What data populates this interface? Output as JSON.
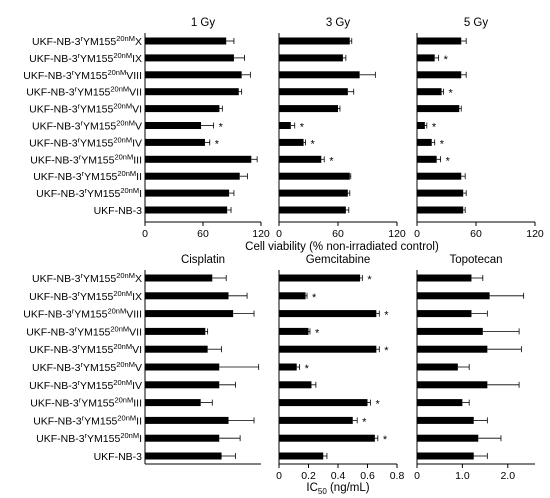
{
  "figure": {
    "top_axis_title": "Cell viability (% non-irradiated control)",
    "bottom_axis_title": "IC",
    "bottom_axis_title_sub": "50",
    "bottom_axis_title_unit": " (ng/mL)",
    "colors": {
      "bar": "#000000",
      "axis": "#000000",
      "background": "#ffffff"
    }
  },
  "row_labels": [
    {
      "base": "UKF-NB-3",
      "sup": "r",
      "mid": "YM155",
      "sup2": "20nM",
      "suffix": "X"
    },
    {
      "base": "UKF-NB-3",
      "sup": "r",
      "mid": "YM155",
      "sup2": "20nM",
      "suffix": "IX"
    },
    {
      "base": "UKF-NB-3",
      "sup": "r",
      "mid": "YM155",
      "sup2": "20nM",
      "suffix": "VIII"
    },
    {
      "base": "UKF-NB-3",
      "sup": "r",
      "mid": "YM155",
      "sup2": "20nM",
      "suffix": "VII"
    },
    {
      "base": "UKF-NB-3",
      "sup": "r",
      "mid": "YM155",
      "sup2": "20nM",
      "suffix": "VI"
    },
    {
      "base": "UKF-NB-3",
      "sup": "r",
      "mid": "YM155",
      "sup2": "20nM",
      "suffix": "V"
    },
    {
      "base": "UKF-NB-3",
      "sup": "r",
      "mid": "YM155",
      "sup2": "20nM",
      "suffix": "IV"
    },
    {
      "base": "UKF-NB-3",
      "sup": "r",
      "mid": "YM155",
      "sup2": "20nM",
      "suffix": "III"
    },
    {
      "base": "UKF-NB-3",
      "sup": "r",
      "mid": "YM155",
      "sup2": "20nM",
      "suffix": "II"
    },
    {
      "base": "UKF-NB-3",
      "sup": "r",
      "mid": "YM155",
      "sup2": "20nM",
      "suffix": "I"
    },
    {
      "base": "UKF-NB-3",
      "sup": "",
      "mid": "",
      "sup2": "",
      "suffix": ""
    }
  ],
  "chart_data": [
    {
      "type": "bar",
      "orientation": "horizontal",
      "title": "1 Gy",
      "xlim": [
        0,
        120
      ],
      "xticks": [
        "0",
        "60",
        "120"
      ],
      "values": [
        84,
        92,
        100,
        97,
        77,
        58,
        62,
        110,
        98,
        87,
        85
      ],
      "errors": [
        8,
        11,
        9,
        3,
        3,
        13,
        5,
        6,
        8,
        5,
        4
      ],
      "significant": [
        false,
        false,
        false,
        false,
        false,
        true,
        true,
        false,
        false,
        false,
        false
      ]
    },
    {
      "type": "bar",
      "orientation": "horizontal",
      "title": "3 Gy",
      "xlim": [
        0,
        120
      ],
      "xticks": [
        "0",
        "60",
        "120"
      ],
      "values": [
        72,
        65,
        82,
        70,
        60,
        12,
        25,
        43,
        72,
        70,
        68
      ],
      "errors": [
        2,
        3,
        16,
        6,
        2,
        4,
        2,
        3,
        1,
        2,
        3
      ],
      "significant": [
        false,
        false,
        false,
        false,
        false,
        true,
        true,
        true,
        false,
        false,
        false
      ]
    },
    {
      "type": "bar",
      "orientation": "horizontal",
      "title": "5 Gy",
      "xlim": [
        0,
        120
      ],
      "xticks": [
        "0",
        "60",
        "120"
      ],
      "values": [
        45,
        18,
        45,
        25,
        43,
        8,
        15,
        20,
        45,
        47,
        47
      ],
      "errors": [
        5,
        4,
        5,
        2,
        2,
        2,
        3,
        4,
        4,
        3,
        2
      ],
      "significant": [
        false,
        true,
        false,
        true,
        false,
        true,
        true,
        true,
        false,
        false,
        false
      ]
    },
    {
      "type": "bar",
      "orientation": "horizontal",
      "title": "Cisplatin",
      "xlim": [
        0,
        250
      ],
      "xticks": [],
      "values": [
        145,
        180,
        190,
        130,
        135,
        160,
        160,
        120,
        180,
        160,
        165
      ],
      "errors": [
        30,
        40,
        45,
        5,
        30,
        85,
        35,
        25,
        55,
        45,
        30
      ],
      "significant": [
        false,
        false,
        false,
        false,
        false,
        false,
        false,
        false,
        false,
        false,
        false
      ]
    },
    {
      "type": "bar",
      "orientation": "horizontal",
      "title": "Gemcitabine",
      "xlim": [
        0,
        0.8
      ],
      "xticks": [
        "0",
        "0.2",
        "0.4",
        "0.6",
        "0.8"
      ],
      "values": [
        0.55,
        0.18,
        0.66,
        0.2,
        0.66,
        0.12,
        0.22,
        0.6,
        0.5,
        0.65,
        0.3
      ],
      "errors": [
        0.015,
        0.01,
        0.02,
        0.01,
        0.02,
        0.02,
        0.03,
        0.02,
        0.03,
        0.02,
        0.025
      ],
      "significant": [
        true,
        true,
        true,
        true,
        true,
        true,
        false,
        true,
        true,
        true,
        false
      ]
    },
    {
      "type": "bar",
      "orientation": "horizontal",
      "title": "Topotecan",
      "xlim": [
        0,
        2.6
      ],
      "xticks": [
        "0",
        "1.0",
        "2.0"
      ],
      "values": [
        1.2,
        1.6,
        1.2,
        1.45,
        1.55,
        0.9,
        1.55,
        1.0,
        1.25,
        1.35,
        1.25
      ],
      "errors": [
        0.25,
        0.75,
        0.35,
        0.8,
        0.75,
        0.25,
        0.7,
        0.15,
        0.3,
        0.5,
        0.3
      ],
      "significant": [
        false,
        false,
        false,
        false,
        false,
        false,
        false,
        false,
        false,
        false,
        false
      ]
    }
  ]
}
